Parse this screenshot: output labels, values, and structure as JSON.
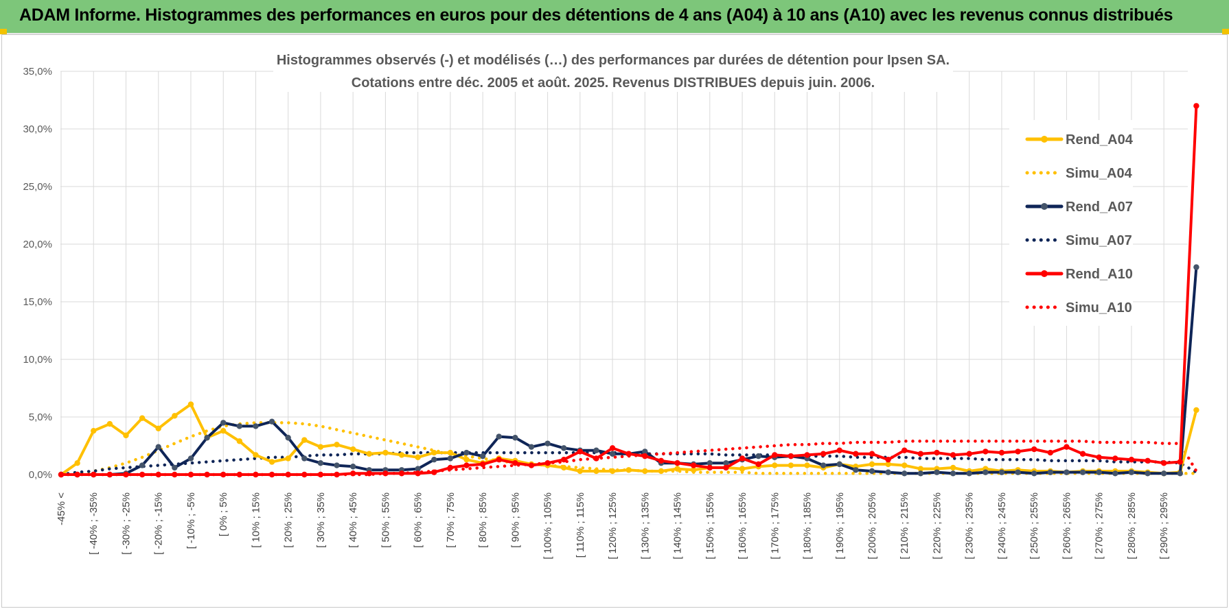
{
  "header": {
    "title": "ADAM Informe. Histogrammes des performances en euros pour des détentions de 4 ans (A04) à 10 ans (A10) avec les revenus connus distribués"
  },
  "chart_data": {
    "type": "line",
    "title_line1": "Histogrammes observés (-) et modélisés (…) des performances par durées de détention pour Ipsen SA.",
    "title_line2": "Cotations entre déc. 2005 et août. 2025. Revenus DISTRIBUES depuis juin. 2006.",
    "xlabel": "",
    "ylabel": "",
    "ylim": [
      0,
      35
    ],
    "yticks": [
      "0,0%",
      "5,0%",
      "10,0%",
      "15,0%",
      "20,0%",
      "25,0%",
      "30,0%",
      "35,0%"
    ],
    "grid": true,
    "legend_position": "right",
    "x_labels": [
      "-45% <",
      "[ -40% ; -35%",
      "[ -30% ; -25%",
      "[ -20% ; -15%",
      "[ -10% ; -5%",
      "[ 0% ; 5%",
      "[ 10% ; 15%",
      "[ 20% ; 25%",
      "[ 30% ; 35%",
      "[ 40% ; 45%",
      "[ 50% ; 55%",
      "[ 60% ; 65%",
      "[ 70% ; 75%",
      "[ 80% ; 85%",
      "[ 90% ; 95%",
      "[ 100% ; 105%",
      "[ 110% ; 115%",
      "[ 120% ; 125%",
      "[ 130% ; 135%",
      "[ 140% ; 145%",
      "[ 150% ; 155%",
      "[ 160% ; 165%",
      "[ 170% ; 175%",
      "[ 180% ; 185%",
      "[ 190% ; 195%",
      "[ 200% ; 205%",
      "[ 210% ; 215%",
      "[ 220% ; 225%",
      "[ 230% ; 235%",
      "[ 240% ; 245%",
      "[ 250% ; 255%",
      "[ 260% ; 265%",
      "[ 270% ; 275%",
      "[ 280% ; 285%",
      "[ 290% ; 295%"
    ],
    "series": [
      {
        "name": "Rend_A04",
        "color": "#ffc000",
        "style": "solid",
        "markers": true,
        "values": [
          0.0,
          1.0,
          3.8,
          4.4,
          3.4,
          4.9,
          4.0,
          5.1,
          6.1,
          3.2,
          3.8,
          2.9,
          1.7,
          1.1,
          1.4,
          3.0,
          2.4,
          2.6,
          2.2,
          1.8,
          1.9,
          1.7,
          1.5,
          1.9,
          1.9,
          1.3,
          1.0,
          1.4,
          1.2,
          0.9,
          0.8,
          0.6,
          0.3,
          0.3,
          0.3,
          0.4,
          0.3,
          0.3,
          0.5,
          0.4,
          0.6,
          0.6,
          0.5,
          0.7,
          0.8,
          0.8,
          0.8,
          0.6,
          0.9,
          0.7,
          0.9,
          0.9,
          0.8,
          0.5,
          0.5,
          0.6,
          0.3,
          0.5,
          0.3,
          0.4,
          0.3,
          0.3,
          0.2,
          0.3,
          0.3,
          0.3,
          0.3,
          0.2,
          0.1,
          0.2,
          5.6
        ]
      },
      {
        "name": "Simu_A04",
        "color": "#ffc000",
        "style": "dotted",
        "markers": false,
        "values": [
          0.0,
          0.1,
          0.3,
          0.6,
          1.0,
          1.5,
          2.1,
          2.7,
          3.3,
          3.8,
          4.2,
          4.4,
          4.5,
          4.5,
          4.5,
          4.4,
          4.2,
          3.9,
          3.6,
          3.3,
          3.0,
          2.7,
          2.4,
          2.1,
          1.8,
          1.6,
          1.4,
          1.2,
          1.0,
          0.9,
          0.8,
          0.7,
          0.6,
          0.5,
          0.4,
          0.4,
          0.3,
          0.3,
          0.3,
          0.2,
          0.2,
          0.2,
          0.2,
          0.1,
          0.1,
          0.1,
          0.1,
          0.1,
          0.1,
          0.1,
          0.1,
          0.1,
          0.1,
          0.1,
          0.1,
          0.1,
          0.1,
          0.1,
          0.1,
          0.1,
          0.1,
          0.1,
          0.1,
          0.1,
          0.1,
          0.1,
          0.1,
          0.1,
          0.1,
          0.1,
          0.1
        ]
      },
      {
        "name": "Rend_A07",
        "color": "#0f2557",
        "style": "solid",
        "markers": true,
        "values": [
          0.0,
          0.0,
          0.0,
          0.0,
          0.1,
          0.8,
          2.4,
          0.6,
          1.4,
          3.2,
          4.5,
          4.2,
          4.2,
          4.6,
          3.2,
          1.4,
          1.0,
          0.8,
          0.7,
          0.4,
          0.4,
          0.4,
          0.5,
          1.3,
          1.4,
          1.9,
          1.6,
          3.3,
          3.2,
          2.4,
          2.7,
          2.3,
          2.1,
          2.1,
          1.8,
          1.8,
          2.0,
          1.0,
          1.0,
          0.9,
          1.0,
          1.0,
          1.3,
          1.6,
          1.5,
          1.6,
          1.4,
          0.8,
          0.9,
          0.4,
          0.3,
          0.2,
          0.1,
          0.1,
          0.2,
          0.1,
          0.1,
          0.2,
          0.2,
          0.2,
          0.1,
          0.2,
          0.2,
          0.2,
          0.2,
          0.1,
          0.2,
          0.1,
          0.1,
          0.1,
          18.0
        ]
      },
      {
        "name": "Simu_A07",
        "color": "#0f2557",
        "style": "dotted",
        "markers": false,
        "values": [
          0.0,
          0.2,
          0.3,
          0.5,
          0.6,
          0.7,
          0.8,
          0.9,
          1.0,
          1.1,
          1.2,
          1.3,
          1.4,
          1.5,
          1.5,
          1.6,
          1.7,
          1.7,
          1.8,
          1.8,
          1.8,
          1.9,
          1.9,
          1.9,
          1.9,
          1.9,
          1.9,
          1.9,
          1.9,
          1.9,
          1.9,
          1.9,
          1.9,
          1.9,
          1.9,
          1.9,
          1.8,
          1.8,
          1.8,
          1.8,
          1.8,
          1.7,
          1.7,
          1.7,
          1.7,
          1.6,
          1.6,
          1.6,
          1.6,
          1.5,
          1.5,
          1.5,
          1.5,
          1.4,
          1.4,
          1.4,
          1.4,
          1.3,
          1.3,
          1.3,
          1.3,
          1.2,
          1.2,
          1.2,
          1.2,
          1.1,
          1.1,
          1.1,
          1.1,
          1.0,
          0.2
        ]
      },
      {
        "name": "Rend_A10",
        "color": "#ff0000",
        "style": "solid",
        "markers": true,
        "values": [
          0.0,
          0.0,
          0.0,
          0.0,
          0.0,
          0.0,
          0.0,
          0.0,
          0.0,
          0.0,
          0.0,
          0.0,
          0.0,
          0.0,
          0.0,
          0.0,
          0.0,
          0.0,
          0.1,
          0.1,
          0.1,
          0.1,
          0.1,
          0.2,
          0.6,
          0.8,
          0.9,
          1.3,
          1.0,
          0.8,
          1.0,
          1.3,
          2.0,
          1.4,
          2.3,
          1.8,
          1.6,
          1.2,
          1.0,
          0.8,
          0.6,
          0.6,
          1.4,
          0.9,
          1.7,
          1.6,
          1.7,
          1.8,
          2.1,
          1.8,
          1.8,
          1.3,
          2.1,
          1.8,
          1.9,
          1.7,
          1.8,
          2.0,
          1.9,
          2.0,
          2.2,
          1.9,
          2.4,
          1.8,
          1.5,
          1.4,
          1.3,
          1.2,
          1.0,
          1.1,
          32.0
        ]
      },
      {
        "name": "Simu_A10",
        "color": "#ff0000",
        "style": "dotted",
        "markers": false,
        "values": [
          0.0,
          0.0,
          0.0,
          0.0,
          0.0,
          0.0,
          0.0,
          0.0,
          0.0,
          0.0,
          0.0,
          0.0,
          0.0,
          0.0,
          0.0,
          0.0,
          0.0,
          0.0,
          0.0,
          0.0,
          0.1,
          0.1,
          0.2,
          0.3,
          0.4,
          0.5,
          0.6,
          0.7,
          0.8,
          0.9,
          1.0,
          1.1,
          1.3,
          1.4,
          1.5,
          1.6,
          1.7,
          1.8,
          1.9,
          2.0,
          2.1,
          2.2,
          2.3,
          2.4,
          2.5,
          2.6,
          2.6,
          2.7,
          2.7,
          2.8,
          2.8,
          2.8,
          2.9,
          2.9,
          2.9,
          2.9,
          2.9,
          2.9,
          2.9,
          2.9,
          2.9,
          2.9,
          2.9,
          2.9,
          2.8,
          2.8,
          2.8,
          2.8,
          2.7,
          2.7,
          0.3
        ]
      }
    ]
  }
}
